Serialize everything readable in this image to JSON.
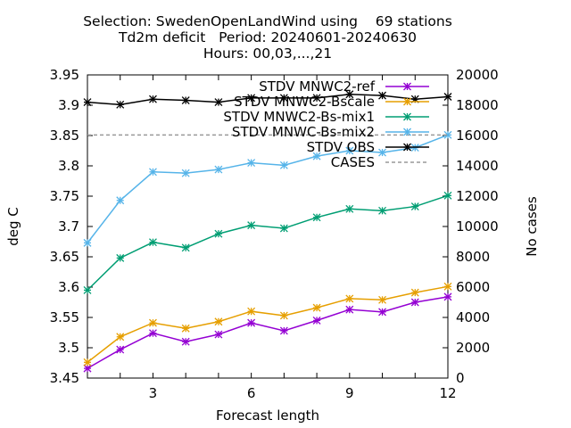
{
  "title_lines": [
    "Selection: SwedenOpenLandWind using    69 stations",
    "Td2m deficit   Period: 20240601-20240630",
    "Hours: 00,03,...,21"
  ],
  "chart_data": {
    "type": "line",
    "xlabel": "Forecast length",
    "ylabel": "deg C",
    "y2label": "No cases",
    "xlim": [
      1,
      12
    ],
    "ylim": [
      3.45,
      3.95
    ],
    "y2lim": [
      0,
      20000
    ],
    "xticks": [
      "3",
      "6",
      "9",
      "12"
    ],
    "yticks": [
      "3.45",
      "3.5",
      "3.55",
      "3.6",
      "3.65",
      "3.7",
      "3.75",
      "3.8",
      "3.85",
      "3.9",
      "3.95"
    ],
    "y2ticks": [
      "0",
      "2000",
      "4000",
      "6000",
      "8000",
      "10000",
      "12000",
      "14000",
      "16000",
      "18000",
      "20000"
    ],
    "x": [
      1,
      2,
      3,
      4,
      5,
      6,
      7,
      8,
      9,
      10,
      11,
      12
    ],
    "legend_position": "top-right",
    "series": [
      {
        "name": "STDV MNWC2-ref",
        "color": "#9400d3",
        "marker": "x",
        "axis": "y",
        "values": [
          3.466,
          3.497,
          3.524,
          3.51,
          3.522,
          3.541,
          3.528,
          3.545,
          3.563,
          3.559,
          3.575,
          3.584
        ]
      },
      {
        "name": "STDV MNWC2-Bscale",
        "color": "#e69f00",
        "marker": "x",
        "axis": "y",
        "values": [
          3.476,
          3.518,
          3.541,
          3.532,
          3.543,
          3.56,
          3.553,
          3.566,
          3.581,
          3.579,
          3.591,
          3.601
        ]
      },
      {
        "name": "STDV MNWC2-Bs-mix1",
        "color": "#009e73",
        "marker": "x",
        "axis": "y",
        "values": [
          3.595,
          3.648,
          3.674,
          3.665,
          3.688,
          3.702,
          3.697,
          3.715,
          3.729,
          3.726,
          3.733,
          3.751
        ]
      },
      {
        "name": "STDV MNWC-Bs-mix2",
        "color": "#56b4e9",
        "marker": "x",
        "axis": "y",
        "values": [
          3.673,
          3.743,
          3.79,
          3.788,
          3.794,
          3.805,
          3.801,
          3.816,
          3.825,
          3.822,
          3.83,
          3.851
        ]
      },
      {
        "name": "STDV OBS",
        "color": "#000000",
        "marker": "x",
        "axis": "y",
        "values": [
          3.905,
          3.901,
          3.91,
          3.908,
          3.905,
          3.912,
          3.912,
          3.912,
          3.918,
          3.916,
          3.91,
          3.914
        ]
      },
      {
        "name": "CASES",
        "color": "#999999",
        "marker": "none",
        "dashed": true,
        "axis": "y2",
        "values": [
          16040,
          16040,
          16040,
          16040,
          16040,
          16040,
          16040,
          16040,
          16040,
          16040,
          16040,
          16040
        ]
      }
    ]
  }
}
